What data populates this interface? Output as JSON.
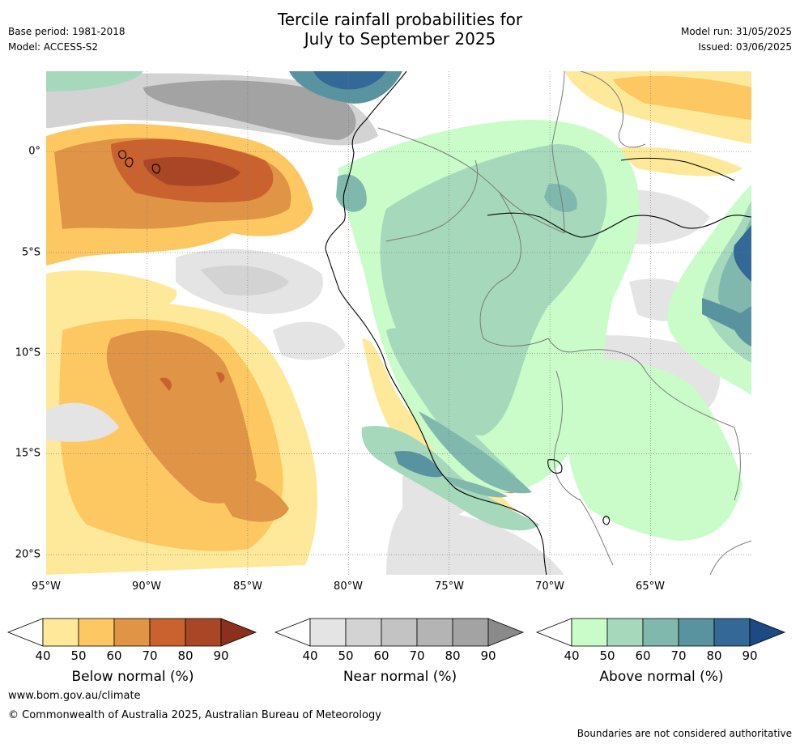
{
  "header": {
    "base_period": "Base period: 1981-2018",
    "model": "Model: ACCESS-S2",
    "title_line1": "Tercile rainfall probabilities for",
    "title_line2": "July to September 2025",
    "model_run": "Model run: 31/05/2025",
    "issued": "Issued: 03/06/2025"
  },
  "map": {
    "x_ticks": [
      "95°W",
      "90°W",
      "85°W",
      "80°W",
      "75°W",
      "70°W",
      "65°W"
    ],
    "x_tick_values": [
      -95,
      -90,
      -85,
      -80,
      -75,
      -70,
      -65
    ],
    "y_ticks": [
      "0°",
      "5°S",
      "10°S",
      "15°S",
      "20°S"
    ],
    "y_tick_values": [
      0,
      -5,
      -10,
      -15,
      -20
    ],
    "lon_range": [
      -95,
      -60
    ],
    "lat_range": [
      -21,
      4
    ]
  },
  "colorbars": [
    {
      "name": "below",
      "label": "Below normal (%)",
      "ticks": [
        "40",
        "50",
        "60",
        "70",
        "80",
        "90"
      ],
      "colors": [
        "#ffffff",
        "#fee99a",
        "#fdc862",
        "#e09446",
        "#c9622f",
        "#a94626",
        "#8c2f1d"
      ]
    },
    {
      "name": "near",
      "label": "Near normal (%)",
      "ticks": [
        "40",
        "50",
        "60",
        "70",
        "80",
        "90"
      ],
      "colors": [
        "#ffffff",
        "#e4e4e4",
        "#d3d3d3",
        "#c3c3c3",
        "#b4b4b4",
        "#a3a3a3",
        "#8a8a8a"
      ]
    },
    {
      "name": "above",
      "label": "Above normal (%)",
      "ticks": [
        "40",
        "50",
        "60",
        "70",
        "80",
        "90"
      ],
      "colors": [
        "#ffffff",
        "#c9fcc9",
        "#a6d8bb",
        "#80b8ad",
        "#5a93a0",
        "#336897",
        "#1b4b82"
      ]
    }
  ],
  "footer": {
    "website": "www.bom.gov.au/climate",
    "copyright": "© Commonwealth of Australia 2025, Australian Bureau of Meteorology",
    "disclaimer": "Boundaries are not considered authoritative"
  }
}
